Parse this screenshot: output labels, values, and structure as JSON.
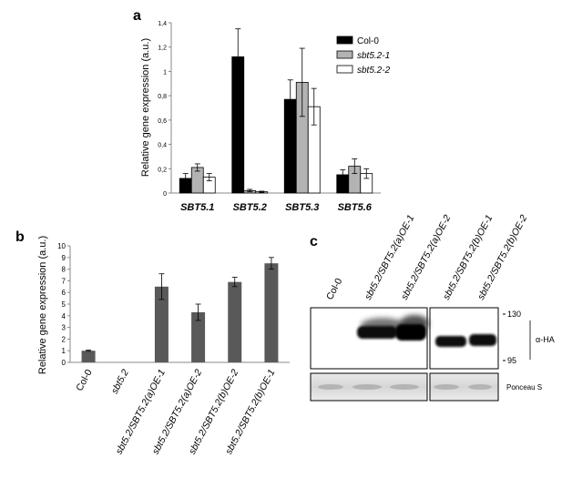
{
  "panel_a": {
    "letter": "a",
    "ylabel": "Relative gene expression (a.u.)",
    "chart_data": {
      "type": "bar",
      "categories": [
        "SBT5.1",
        "SBT5.2",
        "SBT5.3",
        "SBT5.6"
      ],
      "ylabel": "Relative gene expression (a.u.)",
      "ylim": [
        0,
        1.4
      ],
      "yticks": [
        "0",
        "0,2",
        "0,4",
        "0,6",
        "0,8",
        "1",
        "1,2",
        "1,4"
      ],
      "legend_position": "top-right",
      "series": [
        {
          "name": "Col-0",
          "color": "#000000",
          "values": [
            0.12,
            1.12,
            0.77,
            0.15
          ],
          "errors": [
            0.04,
            0.23,
            0.16,
            0.04
          ]
        },
        {
          "name": "sbt5.2-1",
          "color": "#b3b3b3",
          "values": [
            0.21,
            0.02,
            0.91,
            0.22
          ],
          "errors": [
            0.03,
            0.01,
            0.28,
            0.06
          ]
        },
        {
          "name": "sbt5.2-2",
          "color": "#ffffff",
          "values": [
            0.13,
            0.01,
            0.71,
            0.16
          ],
          "errors": [
            0.03,
            0.005,
            0.15,
            0.04
          ]
        }
      ]
    }
  },
  "panel_b": {
    "letter": "b",
    "ylabel": "Relative gene expression (a.u.)",
    "chart_data": {
      "type": "bar",
      "categories": [
        "Col-0",
        "sbt5.2",
        "sbt5.2/SBT5.2(a)OE-1",
        "sbt5.2/SBT5.2(a)OE-2",
        "sbt5.2/SBT5.2(b)OE-2",
        "sbt5.2/SBT5.2(b)OE-1"
      ],
      "ylabel": "Relative gene expression (a.u.)",
      "ylim": [
        0,
        10
      ],
      "yticks": [
        "0",
        "1",
        "2",
        "3",
        "4",
        "5",
        "6",
        "7",
        "8",
        "9",
        "10"
      ],
      "series": [
        {
          "name": "",
          "color": "#595959",
          "values": [
            1.0,
            0.0,
            6.5,
            4.3,
            6.9,
            8.5
          ],
          "errors": [
            0.05,
            0.0,
            1.1,
            0.7,
            0.4,
            0.5
          ]
        }
      ]
    }
  },
  "panel_c": {
    "letter": "c",
    "lanes": [
      "Col-0",
      "sbt5.2/SBT5.2(a)OE-1",
      "sbt5.2/SBT5.2(a)OE-2",
      "sbt5.2/SBT5.2(b)OE-1",
      "sbt5.2/SBT5.2(b)OE-2"
    ],
    "marker_high": "130",
    "marker_low": "95",
    "blot_label": "α-HA",
    "loading_label": "Ponceau S"
  }
}
